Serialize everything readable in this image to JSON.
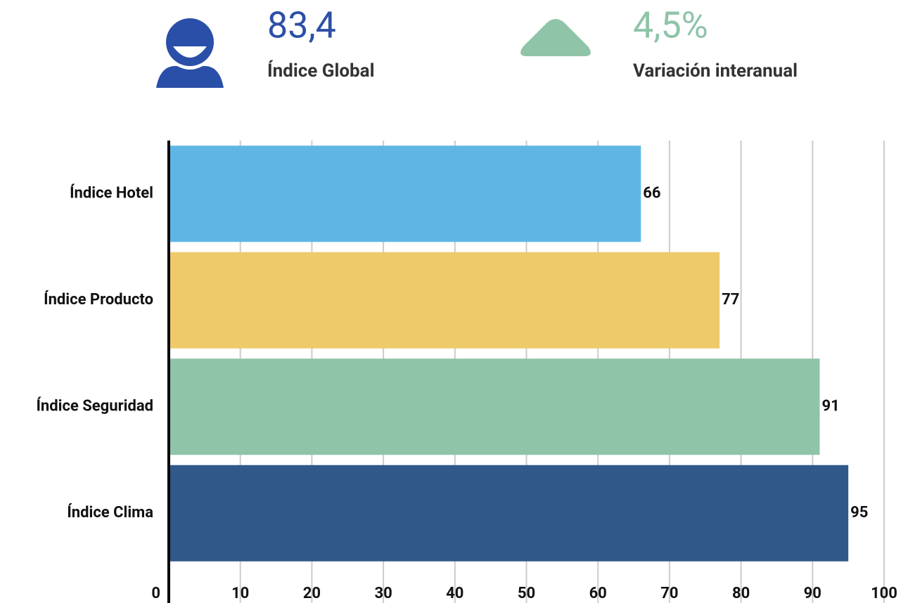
{
  "kpis": [
    {
      "value": "83,4",
      "label": "Índice Global"
    },
    {
      "value": "4,5%",
      "label": "Variación interanual"
    }
  ],
  "chart_data": {
    "type": "bar",
    "orientation": "horizontal",
    "categories": [
      "Índice Hotel",
      "Índice Producto",
      "Índice Seguridad",
      "Índice Clima"
    ],
    "values": [
      66,
      77,
      91,
      95
    ],
    "colors": [
      "#5fb6e5",
      "#efca6b",
      "#8fc4a8",
      "#30598a"
    ],
    "xlim": [
      0,
      100
    ],
    "xticks": [
      0,
      10,
      20,
      30,
      40,
      50,
      60,
      70,
      80,
      90,
      100
    ],
    "grid": true
  }
}
